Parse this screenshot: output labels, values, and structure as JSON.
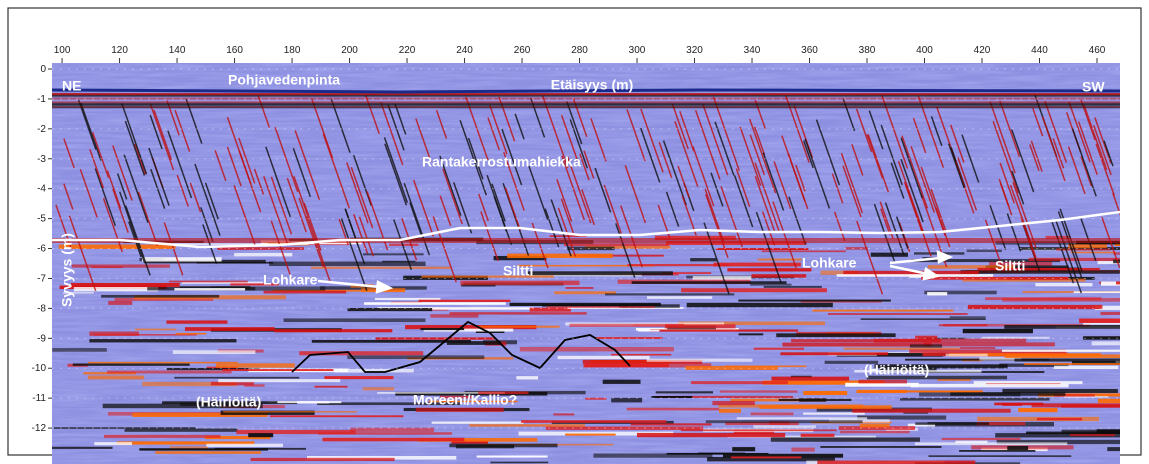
{
  "chart_data": {
    "type": "radargram",
    "x_label": "Etäisyys (m)",
    "y_label": "Syvyys (m)",
    "xlim": [
      96.5,
      468
    ],
    "ylim": [
      -13.2,
      0.2
    ],
    "xticks": [
      100,
      120,
      140,
      160,
      180,
      200,
      220,
      240,
      260,
      280,
      300,
      320,
      340,
      360,
      380,
      400,
      420,
      440,
      460
    ],
    "yticks": [
      0,
      -1,
      -2,
      -3,
      -4,
      -5,
      -6,
      -7,
      -8,
      -9,
      -10,
      -11,
      -12
    ],
    "grid": true,
    "annotations": [
      "NE",
      "Pohjavedenpinta",
      "SW",
      "Rantakerrostumahiekka",
      "Lohkare",
      "Siltti",
      "Lohkare",
      "Siltti",
      "(Häiriöitä)",
      "Moreeni/Kallio?",
      "(Häiriöitä)"
    ]
  }
}
